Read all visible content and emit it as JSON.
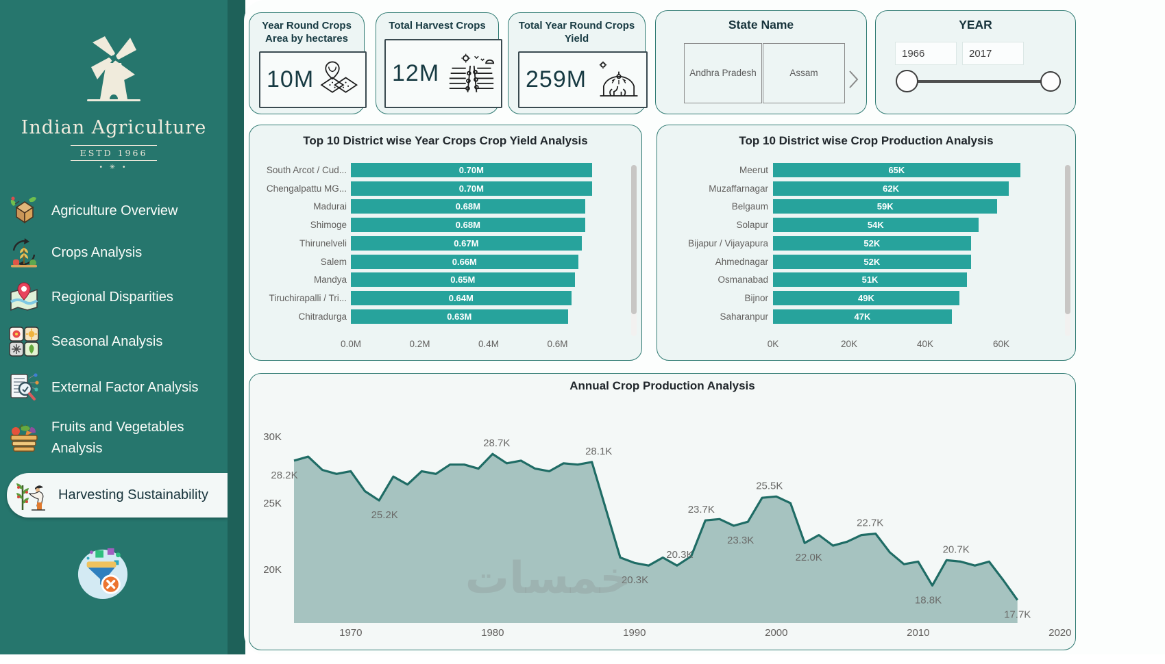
{
  "sidebar": {
    "logo": {
      "title": "Indian Agriculture",
      "estd": "ESTD 1966",
      "ornament": "• ✳ •"
    },
    "items": [
      {
        "label": "Agriculture Overview",
        "icon": "field-overview-icon",
        "active": false
      },
      {
        "label": "Crops Analysis",
        "icon": "crop-cycle-icon",
        "active": false
      },
      {
        "label": "Regional Disparities",
        "icon": "map-pin-icon",
        "active": false
      },
      {
        "label": "Seasonal Analysis",
        "icon": "seasons-icon",
        "active": false
      },
      {
        "label": "External Factor Analysis",
        "icon": "document-magnifier-icon",
        "active": false
      },
      {
        "label": "Fruits and Vegetables Analysis",
        "icon": "vegetable-basket-icon",
        "active": false
      },
      {
        "label": "Harvesting Sustainability",
        "icon": "harvest-plant-icon",
        "active": true
      }
    ],
    "clear_filter_icon": "clear-filter-icon"
  },
  "kpis": [
    {
      "title": "Year Round Crops Area by hectares",
      "value": "10M",
      "icon": "field-area-map-icon"
    },
    {
      "title": "Total Harvest Crops",
      "value": "12M",
      "icon": "harvest-field-icon"
    },
    {
      "title": "Total Year Round Crops Yield",
      "value": "259M",
      "icon": "greenhouse-irrigation-icon"
    }
  ],
  "slicers": {
    "state": {
      "title": "State Name",
      "options": [
        "Andhra Pradesh",
        "Assam"
      ]
    },
    "year": {
      "title": "YEAR",
      "start": "1966",
      "end": "2017"
    }
  },
  "chart_data": [
    {
      "type": "bar",
      "orientation": "horizontal",
      "title": "Top 10 District wise Year Crops Crop Yield Analysis",
      "categories": [
        "South Arcot / Cud...",
        "Chengalpattu MG...",
        "Madurai",
        "Shimoge",
        "Thirunelveli",
        "Salem",
        "Mandya",
        "Tiruchirapalli / Tri...",
        "Chitradurga"
      ],
      "values": [
        0.7,
        0.7,
        0.68,
        0.68,
        0.67,
        0.66,
        0.65,
        0.64,
        0.63
      ],
      "value_labels": [
        "0.70M",
        "0.70M",
        "0.68M",
        "0.68M",
        "0.67M",
        "0.66M",
        "0.65M",
        "0.64M",
        "0.63M"
      ],
      "unit": "M",
      "xticks": {
        "values": [
          0,
          0.2,
          0.4,
          0.6
        ],
        "labels": [
          "0.0M",
          "0.2M",
          "0.4M",
          "0.6M"
        ]
      },
      "bar_color": "#27A39C",
      "scrollable": true
    },
    {
      "type": "bar",
      "orientation": "horizontal",
      "title": "Top 10 District wise Crop Production Analysis",
      "categories": [
        "Meerut",
        "Muzaffarnagar",
        "Belgaum",
        "Solapur",
        "Bijapur / Vijayapura",
        "Ahmednagar",
        "Osmanabad",
        "Bijnor",
        "Saharanpur"
      ],
      "values": [
        65,
        62,
        59,
        54,
        52,
        52,
        51,
        49,
        47
      ],
      "value_labels": [
        "65K",
        "62K",
        "59K",
        "54K",
        "52K",
        "52K",
        "51K",
        "49K",
        "47K"
      ],
      "unit": "K",
      "xticks": {
        "values": [
          0,
          20,
          40,
          60
        ],
        "labels": [
          "0K",
          "20K",
          "40K",
          "60K"
        ]
      },
      "bar_color": "#27A39C",
      "scrollable": true
    },
    {
      "type": "area",
      "title": "Annual Crop Production Analysis",
      "start_year": 1966,
      "end_year": 2017,
      "unit": "K",
      "values": [
        28.2,
        28.5,
        27.5,
        27.2,
        27.4,
        25.9,
        25.2,
        27.0,
        26.4,
        27.4,
        27.2,
        27.9,
        27.9,
        27.6,
        28.7,
        28.0,
        28.2,
        27.6,
        27.4,
        28.0,
        27.9,
        28.1,
        24.5,
        20.9,
        20.5,
        20.3,
        20.9,
        20.3,
        21.0,
        23.7,
        23.8,
        23.3,
        23.6,
        25.4,
        25.5,
        25.0,
        22.0,
        22.6,
        21.8,
        22.1,
        22.6,
        22.7,
        21.3,
        20.4,
        20.6,
        18.8,
        20.7,
        20.6,
        20.3,
        20.6,
        19.2,
        17.7
      ],
      "yticks": {
        "values": [
          30,
          25,
          20
        ],
        "labels": [
          "30K",
          "25K",
          "20K"
        ]
      },
      "xticks": {
        "values": [
          1970,
          1980,
          1990,
          2000,
          2010,
          2020
        ],
        "labels": [
          "1970",
          "1980",
          "1990",
          "2000",
          "2010",
          "2020"
        ]
      },
      "point_labels": [
        {
          "year": 1966,
          "text": "28.2K",
          "pos": "below",
          "dx": -14
        },
        {
          "year": 1972,
          "text": "25.2K",
          "pos": "below",
          "dx": 8
        },
        {
          "year": 1980,
          "text": "28.7K",
          "pos": "above",
          "dx": 6
        },
        {
          "year": 1987,
          "text": "28.1K",
          "pos": "above",
          "dx": 10
        },
        {
          "year": 1991,
          "text": "20.3K",
          "pos": "below",
          "dx": -20
        },
        {
          "year": 1993,
          "text": "20.3K",
          "pos": "above",
          "dx": 4
        },
        {
          "year": 1995,
          "text": "23.7K",
          "pos": "above",
          "dx": -6
        },
        {
          "year": 1997,
          "text": "23.3K",
          "pos": "below",
          "dx": 10
        },
        {
          "year": 2000,
          "text": "25.5K",
          "pos": "above",
          "dx": -10
        },
        {
          "year": 2002,
          "text": "22.0K",
          "pos": "below",
          "dx": 6
        },
        {
          "year": 2007,
          "text": "22.7K",
          "pos": "above",
          "dx": -8
        },
        {
          "year": 2011,
          "text": "18.8K",
          "pos": "below",
          "dx": -6
        },
        {
          "year": 2012,
          "text": "20.7K",
          "pos": "above",
          "dx": 14
        },
        {
          "year": 2017,
          "text": "17.7K",
          "pos": "below",
          "dx": 0
        }
      ],
      "line_color": "#1F6C65",
      "fill_color": "#A6C3C0"
    }
  ],
  "watermark": "خمسات",
  "colors": {
    "sidebar": "#26766D",
    "sidebar_strip": "#1E6159",
    "accent_bar": "#27A39C",
    "area_line": "#1F6C65",
    "area_fill": "#A6C3C0",
    "card_border": "#2F7A72",
    "card_bg": "#EDF5F4"
  }
}
